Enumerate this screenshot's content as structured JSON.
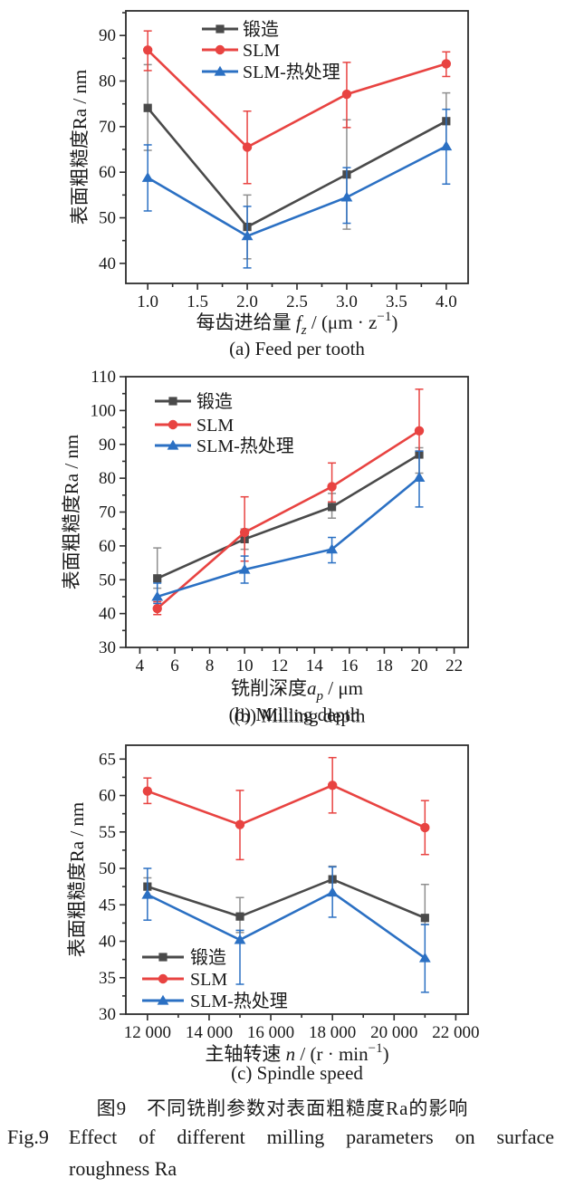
{
  "figure": {
    "caption_zh": "图9　不同铣削参数对表面粗糙度Ra的影响",
    "caption_en_label": "Fig.9",
    "caption_en_line1": "Effect of different milling parameters on surface",
    "caption_en_line2": "roughness Ra"
  },
  "colors": {
    "forged": "#4a4a4a",
    "forged_err": "#8f8f8f",
    "slm": "#e84341",
    "slm_ht": "#2b70c3",
    "axis": "#2e2e2e",
    "text": "#1a1a1a"
  },
  "chart_data": [
    {
      "id": "a",
      "type": "line",
      "title": "(a) Feed per tooth",
      "caption_overlap": false,
      "ylabel": "表面粗糙度Ra / nm",
      "xlabel_parts": [
        {
          "t": "每齿进给量 "
        },
        {
          "t": "f",
          "i": true
        },
        {
          "t": "z",
          "sub": true,
          "i": true
        },
        {
          "t": " / (μm · z"
        },
        {
          "t": "−1",
          "sup": true
        },
        {
          "t": ")"
        }
      ],
      "legend_pos": "top-left",
      "x": [
        1.0,
        2.0,
        3.0,
        4.0
      ],
      "xlim": [
        0.78,
        4.22
      ],
      "ylim": [
        35.6,
        95.4
      ],
      "xticks": [
        1.0,
        1.5,
        2.0,
        2.5,
        3.0,
        3.5,
        4.0
      ],
      "xtick_labels": [
        "1.0",
        "1.5",
        "2.0",
        "2.5",
        "3.0",
        "3.5",
        "4.0"
      ],
      "xminor": 0.25,
      "yticks": [
        40,
        50,
        60,
        70,
        80,
        90
      ],
      "yminor": 5,
      "grid": false,
      "series": [
        {
          "name": "锻造",
          "marker": "square",
          "color_key": "forged",
          "err_color_key": "forged_err",
          "y": [
            74.1,
            48.0,
            59.5,
            71.2
          ],
          "err_lo": [
            64.8,
            41.0,
            47.5,
            65.0
          ],
          "err_hi": [
            83.6,
            55.0,
            71.5,
            77.4
          ]
        },
        {
          "name": "SLM",
          "marker": "circle",
          "color_key": "slm",
          "y": [
            86.8,
            65.5,
            77.1,
            83.8
          ],
          "err_lo": [
            82.3,
            57.5,
            69.8,
            81.0
          ],
          "err_hi": [
            91.0,
            73.4,
            84.1,
            86.4
          ]
        },
        {
          "name": "SLM-热处理",
          "marker": "triangle",
          "color_key": "slm_ht",
          "y": [
            58.8,
            46.0,
            54.5,
            65.7
          ],
          "err_lo": [
            51.5,
            39.0,
            48.8,
            57.4
          ],
          "err_hi": [
            66.0,
            52.5,
            61.0,
            73.8
          ]
        }
      ]
    },
    {
      "id": "b",
      "type": "line",
      "title": "(b) Milling depth",
      "caption_overlap": true,
      "ylabel": "表面粗糙度Ra / nm",
      "xlabel_parts": [
        {
          "t": "铣削深度"
        },
        {
          "t": "a",
          "i": true
        },
        {
          "t": "p",
          "sub": true,
          "i": true
        },
        {
          "t": " / μm"
        }
      ],
      "legend_pos": "top-left",
      "x": [
        5,
        10,
        15,
        20
      ],
      "xlim": [
        3.2,
        22.8
      ],
      "ylim": [
        30,
        110
      ],
      "xticks": [
        4,
        6,
        8,
        10,
        12,
        14,
        16,
        18,
        20,
        22
      ],
      "xtick_labels": [
        "4",
        "6",
        "8",
        "10",
        "12",
        "14",
        "16",
        "18",
        "20",
        "22"
      ],
      "xminor": 1,
      "yticks": [
        30,
        40,
        50,
        60,
        70,
        80,
        90,
        100,
        110
      ],
      "yminor": 5,
      "grid": false,
      "series": [
        {
          "name": "锻造",
          "marker": "square",
          "color_key": "forged",
          "err_color_key": "forged_err",
          "y": [
            50.4,
            62.0,
            71.5,
            87.0
          ],
          "err_lo": [
            47.5,
            59.0,
            68.2,
            81.5
          ],
          "err_hi": [
            59.4,
            65.0,
            75.5,
            89.0
          ]
        },
        {
          "name": "SLM",
          "marker": "circle",
          "color_key": "slm",
          "y": [
            41.5,
            64.0,
            77.5,
            94.0
          ],
          "err_lo": [
            39.7,
            55.5,
            73.0,
            88.0
          ],
          "err_hi": [
            43.5,
            74.5,
            84.5,
            106.3
          ]
        },
        {
          "name": "SLM-热处理",
          "marker": "triangle",
          "color_key": "slm_ht",
          "y": [
            45.0,
            53.0,
            59.0,
            80.2
          ],
          "err_lo": [
            43.0,
            49.0,
            55.0,
            71.5
          ],
          "err_hi": [
            49.0,
            57.0,
            62.5,
            88.0
          ]
        }
      ]
    },
    {
      "id": "c",
      "type": "line",
      "title": "(c) Spindle speed",
      "caption_overlap": false,
      "ylabel": "表面粗糙度Ra / nm",
      "xlabel_parts": [
        {
          "t": "主轴转速 "
        },
        {
          "t": "n",
          "i": true
        },
        {
          "t": " / (r · min"
        },
        {
          "t": "−1",
          "sup": true
        },
        {
          "t": ")"
        }
      ],
      "legend_pos": "bottom-left",
      "x": [
        12000,
        15000,
        18000,
        21000
      ],
      "xlim": [
        11300,
        22400
      ],
      "ylim": [
        30,
        66.9
      ],
      "xticks": [
        12000,
        14000,
        16000,
        18000,
        20000,
        22000
      ],
      "xtick_labels": [
        "12 000",
        "14 000",
        "16 000",
        "18 000",
        "20 000",
        "22 000"
      ],
      "xminor": 1000,
      "yticks": [
        30,
        35,
        40,
        45,
        50,
        55,
        60,
        65
      ],
      "yminor": 2.5,
      "grid": false,
      "series": [
        {
          "name": "锻造",
          "marker": "square",
          "color_key": "forged",
          "err_color_key": "forged_err",
          "y": [
            47.5,
            43.4,
            48.5,
            43.2
          ],
          "err_lo": [
            46.2,
            41.2,
            46.5,
            42.3
          ],
          "err_hi": [
            48.7,
            46.0,
            50.3,
            47.8
          ]
        },
        {
          "name": "SLM",
          "marker": "circle",
          "color_key": "slm",
          "y": [
            60.6,
            56.0,
            61.4,
            55.6
          ],
          "err_lo": [
            58.9,
            51.2,
            57.6,
            51.9
          ],
          "err_hi": [
            62.4,
            60.7,
            65.2,
            59.3
          ]
        },
        {
          "name": "SLM-热处理",
          "marker": "triangle",
          "color_key": "slm_ht",
          "y": [
            46.4,
            40.2,
            46.7,
            37.7
          ],
          "err_lo": [
            42.9,
            34.1,
            43.3,
            33.0
          ],
          "err_hi": [
            50.0,
            41.5,
            50.2,
            42.3
          ]
        }
      ]
    }
  ]
}
